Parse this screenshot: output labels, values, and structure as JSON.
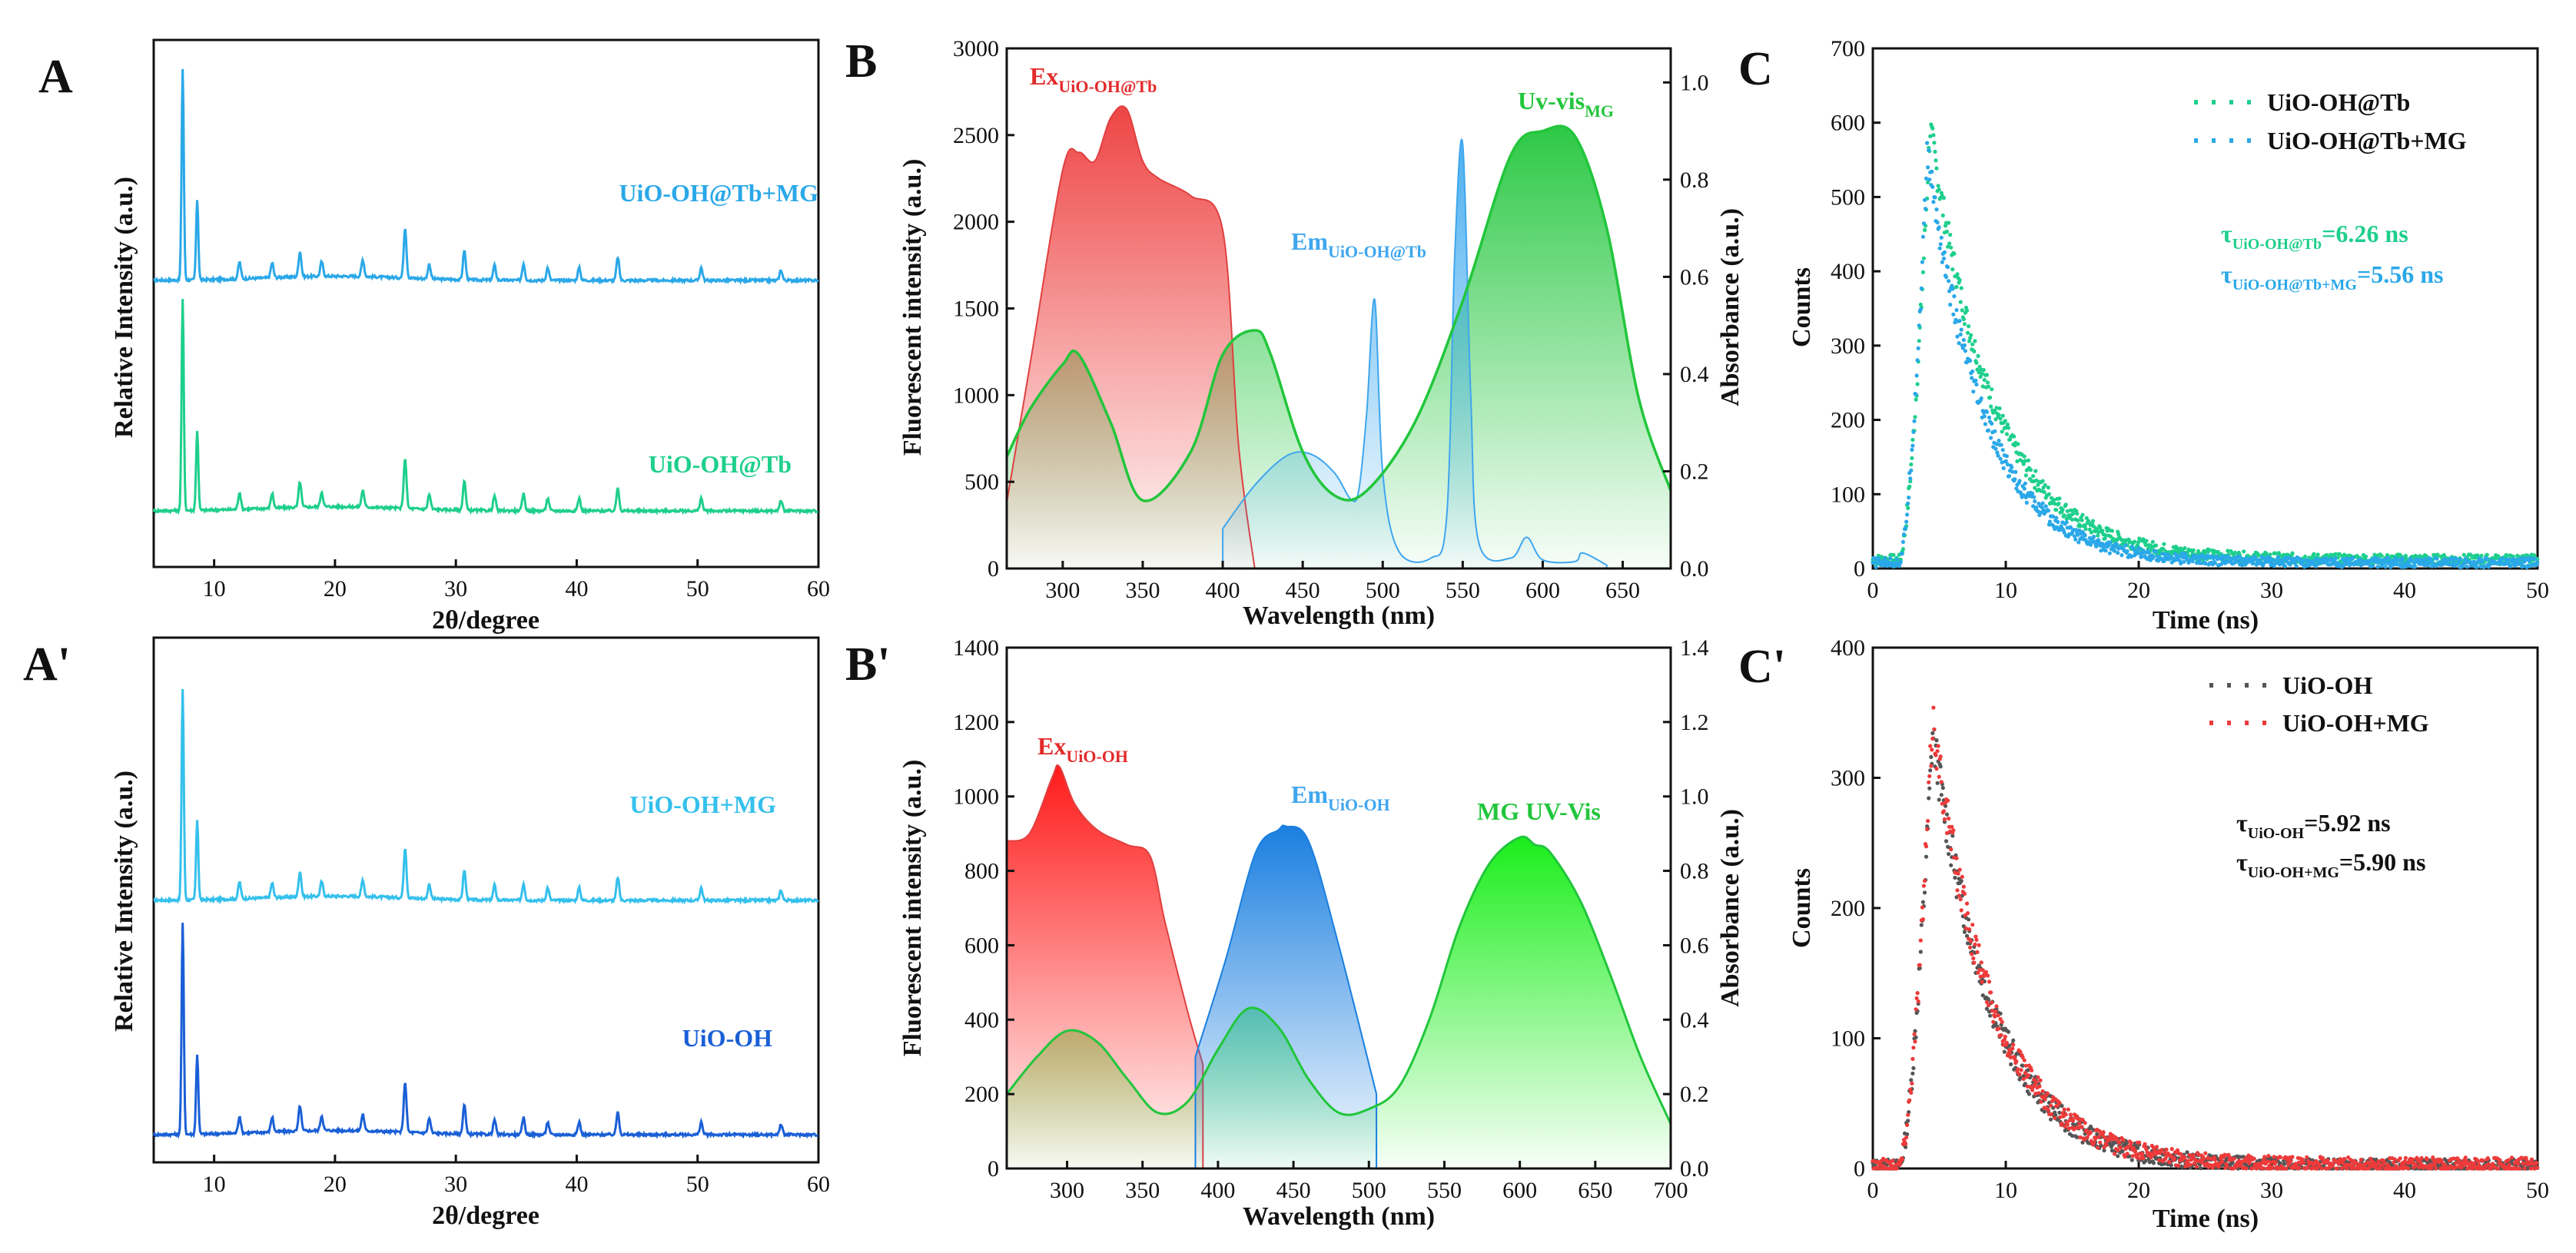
{
  "panels": {
    "A": {
      "letter": "A",
      "xlabel": "2θ/degree",
      "ylabel": "Relative Intensity (a.u.)",
      "xticks": [
        "10",
        "20",
        "30",
        "40",
        "50",
        "60"
      ],
      "series": [
        {
          "name": "UiO-OH@Tb+MG",
          "color": "#2aa8e8"
        },
        {
          "name": "UiO-OH@Tb",
          "color": "#1ecf8c"
        }
      ]
    },
    "Aprime": {
      "letter": "A'",
      "xlabel": "2θ/degree",
      "ylabel": "Relative Intensity (a.u.)",
      "xticks": [
        "10",
        "20",
        "30",
        "40",
        "50",
        "60"
      ],
      "series": [
        {
          "name": "UiO-OH+MG",
          "color": "#34c0ec"
        },
        {
          "name": "UiO-OH",
          "color": "#1a5fd6"
        }
      ]
    },
    "B": {
      "letter": "B",
      "xlabel": "Wavelength (nm)",
      "ylabel": "Fluorescent intensity (a.u.)",
      "y2label": "Absorbance (a.u.)",
      "xticks": [
        "300",
        "350",
        "400",
        "450",
        "500",
        "550",
        "600",
        "650"
      ],
      "yticks": [
        "0",
        "500",
        "1000",
        "1500",
        "2000",
        "2500",
        "3000"
      ],
      "y2ticks": [
        "0.0",
        "0.2",
        "0.4",
        "0.6",
        "0.8",
        "1.0"
      ],
      "labels": {
        "ex": "Ex",
        "ex_sub": "UiO-OH@Tb",
        "em": "Em",
        "em_sub": "UiO-OH@Tb",
        "uv": "Uv-vis",
        "uv_sub": "MG"
      }
    },
    "Bprime": {
      "letter": "B'",
      "xlabel": "Wavelength (nm)",
      "ylabel": "Fluorescent intensity (a.u.)",
      "y2label": "Absorbance (a.u.)",
      "xticks": [
        "300",
        "350",
        "400",
        "450",
        "500",
        "550",
        "600",
        "650",
        "700"
      ],
      "yticks": [
        "0",
        "200",
        "400",
        "600",
        "800",
        "1000",
        "1200",
        "1400"
      ],
      "y2ticks": [
        "0.0",
        "0.2",
        "0.4",
        "0.6",
        "0.8",
        "1.0",
        "1.2",
        "1.4"
      ],
      "labels": {
        "ex": "Ex",
        "ex_sub": "UiO-OH",
        "em": "Em",
        "em_sub": "UiO-OH",
        "uv": "MG UV-Vis"
      }
    },
    "C": {
      "letter": "C",
      "xlabel": "Time (ns)",
      "ylabel": "Counts",
      "xticks": [
        "0",
        "10",
        "20",
        "30",
        "40",
        "50"
      ],
      "yticks": [
        "0",
        "100",
        "200",
        "300",
        "400",
        "500",
        "600",
        "700"
      ],
      "legend": [
        {
          "name": "UiO-OH@Tb",
          "color": "#1ecf8c"
        },
        {
          "name": "UiO-OH@Tb+MG",
          "color": "#2aa8e8"
        }
      ],
      "tau1": {
        "sym": "τ",
        "sub": "UiO-OH@Tb",
        "val": "=6.26 ns",
        "color": "#1ecf8c"
      },
      "tau2": {
        "sym": "τ",
        "sub": "UiO-OH@Tb+MG",
        "val": "=5.56 ns",
        "color": "#2aa8e8"
      }
    },
    "Cprime": {
      "letter": "C'",
      "xlabel": "Time (ns)",
      "ylabel": "Counts",
      "xticks": [
        "0",
        "10",
        "20",
        "30",
        "40",
        "50"
      ],
      "yticks": [
        "0",
        "100",
        "200",
        "300",
        "400"
      ],
      "legend": [
        {
          "name": "UiO-OH",
          "color": "#555555"
        },
        {
          "name": "UiO-OH+MG",
          "color": "#ee3a3a"
        }
      ],
      "tau1": {
        "sym": "τ",
        "sub": "UiO-OH",
        "val": "=5.92 ns",
        "color": "#111111"
      },
      "tau2": {
        "sym": "τ",
        "sub": "UiO-OH+MG",
        "val": "=5.90 ns",
        "color": "#111111"
      }
    }
  },
  "chart_data": [
    {
      "panel": "A",
      "type": "line",
      "title": "",
      "xlabel": "2θ/degree",
      "ylabel": "Relative Intensity (a.u.)",
      "xlim": [
        5,
        60
      ],
      "peaks_2theta": [
        7.4,
        8.6,
        12.1,
        14.8,
        17.1,
        18.9,
        22.3,
        25.8,
        27.8,
        30.7,
        33.2,
        35.6,
        37.6,
        40.2,
        43.4,
        50.3,
        56.9
      ],
      "peak_rel_heights": [
        1.0,
        0.38,
        0.08,
        0.07,
        0.12,
        0.07,
        0.08,
        0.24,
        0.07,
        0.14,
        0.07,
        0.08,
        0.06,
        0.06,
        0.11,
        0.06,
        0.05
      ],
      "series": [
        {
          "name": "UiO-OH@Tb+MG",
          "offset": 1
        },
        {
          "name": "UiO-OH@Tb",
          "offset": 0
        }
      ]
    },
    {
      "panel": "A'",
      "type": "line",
      "title": "",
      "xlabel": "2θ/degree",
      "ylabel": "Relative Intensity (a.u.)",
      "xlim": [
        5,
        60
      ],
      "peaks_2theta": [
        7.4,
        8.6,
        12.1,
        14.8,
        17.1,
        18.9,
        22.3,
        25.8,
        27.8,
        30.7,
        33.2,
        35.6,
        37.6,
        40.2,
        43.4,
        50.3,
        56.9
      ],
      "peak_rel_heights": [
        1.0,
        0.38,
        0.08,
        0.07,
        0.12,
        0.07,
        0.08,
        0.24,
        0.07,
        0.14,
        0.07,
        0.08,
        0.06,
        0.06,
        0.11,
        0.06,
        0.05
      ],
      "series": [
        {
          "name": "UiO-OH+MG",
          "offset": 1
        },
        {
          "name": "UiO-OH",
          "offset": 0
        }
      ]
    },
    {
      "panel": "B",
      "type": "area",
      "xlabel": "Wavelength (nm)",
      "ylabel": "Fluorescent intensity (a.u.)",
      "y2label": "Absorbance (a.u.)",
      "xlim": [
        265,
        680
      ],
      "ylim": [
        0,
        3000
      ],
      "y2lim": [
        0,
        1.07
      ],
      "series": [
        {
          "name": "Ex UiO-OH@Tb",
          "axis": "left",
          "x": [
            265,
            280,
            300,
            310,
            320,
            330,
            340,
            350,
            360,
            380,
            400,
            410,
            420
          ],
          "y": [
            380,
            1200,
            2300,
            2400,
            2350,
            2600,
            2650,
            2350,
            2250,
            2150,
            1950,
            700,
            0
          ]
        },
        {
          "name": "Em UiO-OH@Tb",
          "axis": "left",
          "x": [
            400,
            420,
            440,
            455,
            470,
            480,
            485,
            490,
            495,
            500,
            510,
            530,
            540,
            545,
            550,
            555,
            560,
            580,
            590,
            600,
            620,
            625,
            640
          ],
          "y": [
            230,
            480,
            650,
            660,
            550,
            400,
            450,
            900,
            1550,
            550,
            100,
            60,
            300,
            1800,
            2450,
            1000,
            150,
            60,
            180,
            50,
            40,
            90,
            20
          ]
        },
        {
          "name": "Uv-vis MG",
          "axis": "right",
          "x": [
            265,
            280,
            300,
            310,
            330,
            350,
            380,
            400,
            420,
            430,
            450,
            470,
            490,
            520,
            550,
            580,
            600,
            620,
            640,
            660,
            680
          ],
          "y": [
            0.23,
            0.33,
            0.42,
            0.44,
            0.3,
            0.14,
            0.24,
            0.44,
            0.49,
            0.44,
            0.24,
            0.15,
            0.16,
            0.3,
            0.55,
            0.85,
            0.9,
            0.89,
            0.7,
            0.35,
            0.16
          ]
        }
      ]
    },
    {
      "panel": "B'",
      "type": "area",
      "xlabel": "Wavelength (nm)",
      "ylabel": "Fluorescent intensity (a.u.)",
      "y2label": "Absorbance (a.u.)",
      "xlim": [
        260,
        700
      ],
      "ylim": [
        0,
        1400
      ],
      "y2lim": [
        0,
        1.4
      ],
      "series": [
        {
          "name": "Ex UiO-OH",
          "axis": "left",
          "x": [
            260,
            275,
            290,
            295,
            305,
            320,
            340,
            355,
            365,
            380,
            390
          ],
          "y": [
            880,
            900,
            1050,
            1080,
            980,
            910,
            870,
            840,
            660,
            420,
            280
          ]
        },
        {
          "name": "Em UiO-OH",
          "axis": "left",
          "x": [
            385,
            405,
            425,
            440,
            445,
            460,
            480,
            505
          ],
          "y": [
            300,
            560,
            850,
            910,
            920,
            880,
            600,
            200
          ]
        },
        {
          "name": "MG UV-Vis",
          "axis": "right",
          "x": [
            260,
            280,
            300,
            320,
            340,
            360,
            380,
            400,
            420,
            440,
            460,
            480,
            500,
            520,
            540,
            560,
            580,
            600,
            610,
            620,
            640,
            660,
            680,
            700
          ],
          "y": [
            0.2,
            0.3,
            0.37,
            0.34,
            0.24,
            0.15,
            0.18,
            0.32,
            0.43,
            0.38,
            0.24,
            0.15,
            0.16,
            0.22,
            0.4,
            0.65,
            0.82,
            0.89,
            0.87,
            0.85,
            0.72,
            0.52,
            0.3,
            0.12
          ]
        }
      ]
    },
    {
      "panel": "C",
      "type": "scatter",
      "xlabel": "Time (ns)",
      "ylabel": "Counts",
      "xlim": [
        0,
        50
      ],
      "ylim": [
        0,
        700
      ],
      "series": [
        {
          "name": "UiO-OH@Tb",
          "rise_start": 2.0,
          "peak_time": 4.3,
          "peak": 595,
          "tau_ns": 6.26,
          "baseline": 12
        },
        {
          "name": "UiO-OH@Tb+MG",
          "rise_start": 2.0,
          "peak_time": 4.1,
          "peak": 560,
          "tau_ns": 5.56,
          "baseline": 8
        }
      ]
    },
    {
      "panel": "C'",
      "type": "scatter",
      "xlabel": "Time (ns)",
      "ylabel": "Counts",
      "xlim": [
        0,
        50
      ],
      "ylim": [
        0,
        400
      ],
      "series": [
        {
          "name": "UiO-OH",
          "rise_start": 2.0,
          "peak_time": 4.5,
          "peak": 335,
          "tau_ns": 5.92,
          "baseline": 2
        },
        {
          "name": "UiO-OH+MG",
          "rise_start": 2.0,
          "peak_time": 4.5,
          "peak": 345,
          "tau_ns": 5.9,
          "baseline": 3
        }
      ]
    }
  ]
}
